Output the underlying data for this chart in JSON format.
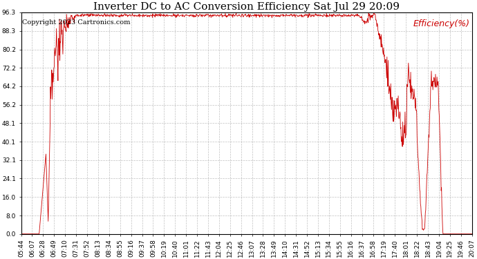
{
  "title": "Inverter DC to AC Conversion Efficiency Sat Jul 29 20:09",
  "copyright": "Copyright 2023 Cartronics.com",
  "legend_label": "Efficiency(%)",
  "line_color": "#cc0000",
  "background_color": "#ffffff",
  "grid_color": "#b0b0b0",
  "ylim": [
    0.0,
    96.3
  ],
  "yticks": [
    0.0,
    8.0,
    16.0,
    24.1,
    32.1,
    40.1,
    48.1,
    56.2,
    64.2,
    72.2,
    80.2,
    88.3,
    96.3
  ],
  "xtick_labels": [
    "05:44",
    "06:07",
    "06:28",
    "06:49",
    "07:10",
    "07:31",
    "07:52",
    "08:13",
    "08:34",
    "08:55",
    "09:16",
    "09:37",
    "09:58",
    "10:19",
    "10:40",
    "11:01",
    "11:22",
    "11:43",
    "12:04",
    "12:25",
    "12:46",
    "13:07",
    "13:28",
    "13:49",
    "14:10",
    "14:31",
    "14:52",
    "15:13",
    "15:34",
    "15:55",
    "16:16",
    "16:37",
    "16:58",
    "17:19",
    "17:40",
    "18:01",
    "18:22",
    "18:43",
    "19:04",
    "19:25",
    "19:46",
    "20:07"
  ],
  "title_fontsize": 11,
  "copyright_fontsize": 7,
  "tick_fontsize": 6.5,
  "legend_fontsize": 9,
  "figsize": [
    6.9,
    3.75
  ],
  "dpi": 100
}
